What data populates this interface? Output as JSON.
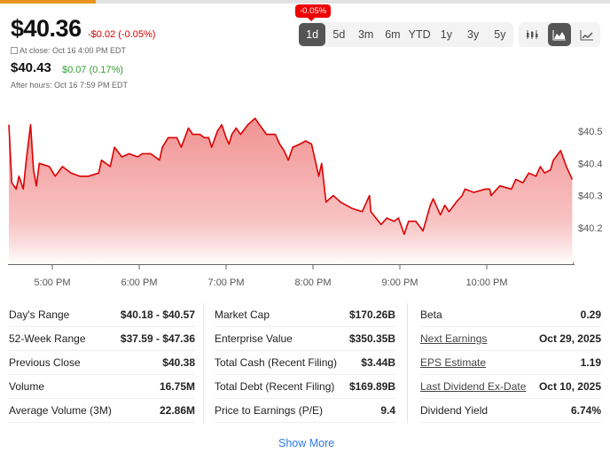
{
  "progress": {
    "fraction": 0.157,
    "color": "#e8951f"
  },
  "quote": {
    "price": "$40.36",
    "change": "-$0.02 (-0.05%)",
    "close_label": "At close: Oct 16 4:00 PM EDT",
    "after_hours_price": "$40.43",
    "after_hours_change": "$0.07 (0.17%)",
    "after_hours_label": "After hours: Oct 16 7:59 PM EDT"
  },
  "tooltip": "-0.05%",
  "ranges": [
    "1d",
    "5d",
    "3m",
    "6m",
    "YTD",
    "1y",
    "3y",
    "5y"
  ],
  "active_range": "1d",
  "chart_types": [
    {
      "icon": "candlestick-icon",
      "active": false
    },
    {
      "icon": "mountain-chart-icon",
      "active": true
    },
    {
      "icon": "line-chart-icon",
      "active": false
    }
  ],
  "colors": {
    "line": "#dd0000",
    "up": "#2e9e2e",
    "down": "#d40000",
    "link": "#2f7ae5"
  },
  "chart_data": {
    "type": "area",
    "x_ticks": [
      "5:00 PM",
      "6:00 PM",
      "7:00 PM",
      "8:00 PM",
      "9:00 PM",
      "10:00 PM"
    ],
    "x_tick_times": [
      "17:00",
      "18:00",
      "19:00",
      "20:00",
      "21:00",
      "22:00"
    ],
    "y_ticks": [
      "$40.5",
      "$40.4",
      "$40.3",
      "$40.2"
    ],
    "y_tick_values": [
      40.5,
      40.4,
      40.3,
      40.2
    ],
    "y_axis": "right",
    "grid": false,
    "points": [
      [
        "16:30",
        40.52
      ],
      [
        "16:32",
        40.34
      ],
      [
        "16:35",
        40.32
      ],
      [
        "16:37",
        40.36
      ],
      [
        "16:40",
        40.32
      ],
      [
        "16:42",
        40.41
      ],
      [
        "16:45",
        40.52
      ],
      [
        "16:47",
        40.38
      ],
      [
        "16:49",
        40.33
      ],
      [
        "16:51",
        40.4
      ],
      [
        "16:58",
        40.39
      ],
      [
        "17:02",
        40.36
      ],
      [
        "17:07",
        40.39
      ],
      [
        "17:13",
        40.37
      ],
      [
        "17:19",
        40.36
      ],
      [
        "17:25",
        40.36
      ],
      [
        "17:32",
        40.37
      ],
      [
        "17:34",
        40.41
      ],
      [
        "17:40",
        40.39
      ],
      [
        "17:43",
        40.45
      ],
      [
        "17:48",
        40.42
      ],
      [
        "17:53",
        40.43
      ],
      [
        "17:59",
        40.42
      ],
      [
        "18:02",
        40.43
      ],
      [
        "18:08",
        40.43
      ],
      [
        "18:14",
        40.41
      ],
      [
        "18:16",
        40.45
      ],
      [
        "18:20",
        40.48
      ],
      [
        "18:26",
        40.48
      ],
      [
        "18:29",
        40.45
      ],
      [
        "18:34",
        40.51
      ],
      [
        "18:37",
        40.49
      ],
      [
        "18:42",
        40.49
      ],
      [
        "18:45",
        40.48
      ],
      [
        "18:48",
        40.48
      ],
      [
        "18:50",
        40.45
      ],
      [
        "18:54",
        40.5
      ],
      [
        "18:57",
        40.52
      ],
      [
        "19:00",
        40.48
      ],
      [
        "19:02",
        40.46
      ],
      [
        "19:04",
        40.49
      ],
      [
        "19:07",
        40.51
      ],
      [
        "19:10",
        40.49
      ],
      [
        "19:15",
        40.52
      ],
      [
        "19:20",
        40.54
      ],
      [
        "19:23",
        40.52
      ],
      [
        "19:28",
        40.49
      ],
      [
        "19:34",
        40.49
      ],
      [
        "19:37",
        40.46
      ],
      [
        "19:40",
        40.44
      ],
      [
        "19:43",
        40.41
      ],
      [
        "19:46",
        40.45
      ],
      [
        "19:51",
        40.46
      ],
      [
        "19:55",
        40.47
      ],
      [
        "19:59",
        40.46
      ],
      [
        "20:04",
        40.36
      ],
      [
        "20:06",
        40.4
      ],
      [
        "20:09",
        40.28
      ],
      [
        "20:14",
        40.3
      ],
      [
        "20:19",
        40.28
      ],
      [
        "20:27",
        40.26
      ],
      [
        "20:34",
        40.25
      ],
      [
        "20:39",
        40.3
      ],
      [
        "20:40",
        40.25
      ],
      [
        "20:47",
        40.21
      ],
      [
        "20:51",
        40.23
      ],
      [
        "20:56",
        40.22
      ],
      [
        "20:59",
        40.23
      ],
      [
        "21:03",
        40.18
      ],
      [
        "21:06",
        40.22
      ],
      [
        "21:11",
        40.22
      ],
      [
        "21:16",
        40.19
      ],
      [
        "21:21",
        40.27
      ],
      [
        "21:23",
        40.29
      ],
      [
        "21:28",
        40.24
      ],
      [
        "21:31",
        40.27
      ],
      [
        "21:34",
        40.25
      ],
      [
        "21:39",
        40.28
      ],
      [
        "21:43",
        40.3
      ],
      [
        "21:45",
        40.32
      ],
      [
        "21:51",
        40.31
      ],
      [
        "21:59",
        40.32
      ],
      [
        "22:02",
        40.32
      ],
      [
        "22:03",
        40.3
      ],
      [
        "22:09",
        40.33
      ],
      [
        "22:17",
        40.32
      ],
      [
        "22:20",
        40.35
      ],
      [
        "22:25",
        40.34
      ],
      [
        "22:29",
        40.37
      ],
      [
        "22:34",
        40.36
      ],
      [
        "22:37",
        40.39
      ],
      [
        "22:40",
        40.37
      ],
      [
        "22:44",
        40.38
      ],
      [
        "22:46",
        40.41
      ],
      [
        "22:51",
        40.44
      ],
      [
        "22:55",
        40.39
      ],
      [
        "22:59",
        40.35
      ]
    ]
  },
  "stats": {
    "col1": [
      {
        "label": "Day's Range",
        "value": "$40.18 - $40.57"
      },
      {
        "label": "52-Week Range",
        "value": "$37.59 - $47.36"
      },
      {
        "label": "Previous Close",
        "value": "$40.38"
      },
      {
        "label": "Volume",
        "value": "16.75M"
      },
      {
        "label": "Average Volume (3M)",
        "value": "22.86M"
      }
    ],
    "col2": [
      {
        "label": "Market Cap",
        "value": "$170.26B"
      },
      {
        "label": "Enterprise Value",
        "value": "$350.35B"
      },
      {
        "label": "Total Cash (Recent Filing)",
        "value": "$3.44B"
      },
      {
        "label": "Total Debt (Recent Filing)",
        "value": "$169.89B"
      },
      {
        "label": "Price to Earnings (P/E)",
        "value": "9.4"
      }
    ],
    "col3": [
      {
        "label": "Beta",
        "value": "0.29",
        "link": false
      },
      {
        "label": "Next Earnings",
        "value": "Oct 29, 2025",
        "link": true
      },
      {
        "label": "EPS Estimate",
        "value": "1.19",
        "link": true
      },
      {
        "label": "Last Dividend Ex-Date",
        "value": "Oct 10, 2025",
        "link": true
      },
      {
        "label": "Dividend Yield",
        "value": "6.74%",
        "link": false
      }
    ]
  },
  "show_more": "Show More"
}
